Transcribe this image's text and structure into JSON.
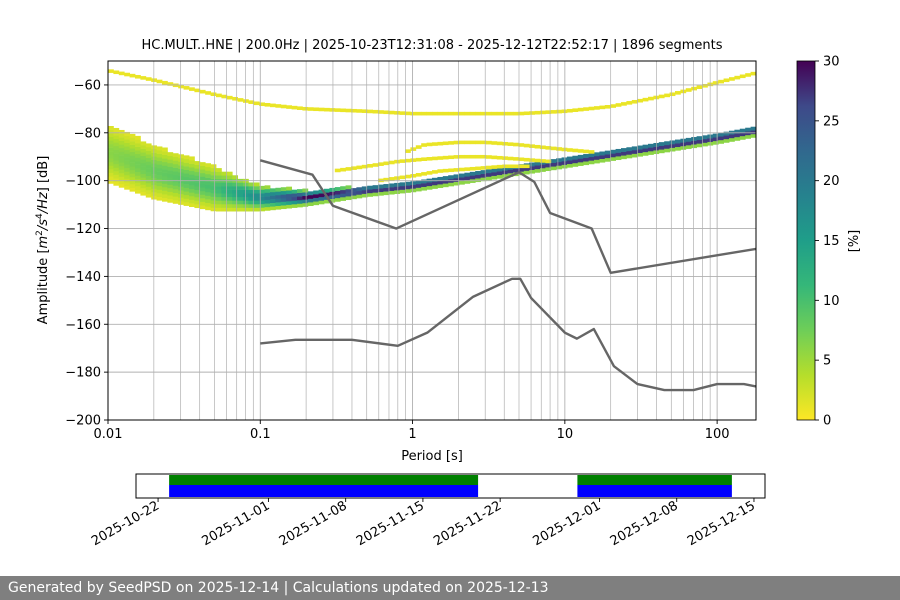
{
  "title": "HC.MULT..HNE | 200.0Hz | 2025-10-23T12:31:08 - 2025-12-12T22:52:17 | 1896 segments",
  "footer": "Generated by SeedPSD on 2025-12-14 | Calculations updated on 2025-12-13",
  "chart_data": [
    {
      "type": "heatmap",
      "title": "HC.MULT..HNE | 200.0Hz | 2025-10-23T12:31:08 - 2025-12-12T22:52:17 | 1896 segments",
      "xlabel": "Period [s]",
      "ylabel": "Amplitude [m²/s⁴/Hz] [dB]",
      "x_scale": "log",
      "xlim": [
        0.01,
        180
      ],
      "ylim": [
        -200,
        -50
      ],
      "x_ticks": [
        "0.01",
        "0.1",
        "1",
        "10",
        "100"
      ],
      "y_ticks": [
        "−60",
        "−80",
        "−100",
        "−120",
        "−140",
        "−160",
        "−180",
        "−200"
      ],
      "grid": true,
      "colorbar": {
        "label": "[%]",
        "min": 0,
        "max": 30,
        "ticks": [
          "0",
          "5",
          "10",
          "15",
          "20",
          "25",
          "30"
        ],
        "colormap": "viridis_r"
      },
      "density_bands": [
        {
          "name": "main-psd-band",
          "x": [
            0.01,
            0.02,
            0.05,
            0.1,
            0.2,
            0.5,
            1,
            2,
            5,
            10,
            20,
            50,
            100,
            180
          ],
          "y": [
            -88,
            -96,
            -103,
            -107,
            -107,
            -104,
            -102,
            -99,
            -95,
            -92,
            -89,
            -85,
            -82,
            -79
          ],
          "spread_db": [
            12,
            11,
            9,
            5,
            3,
            2,
            2,
            2,
            2,
            2,
            2,
            2,
            2,
            2
          ],
          "peak_percent": [
            6,
            8,
            10,
            18,
            30,
            30,
            30,
            30,
            30,
            30,
            30,
            30,
            30,
            30
          ]
        }
      ],
      "faint_traces": [
        {
          "x": [
            0.01,
            0.02,
            0.05,
            0.1,
            0.2,
            0.5,
            1,
            2,
            5,
            10,
            20,
            50,
            100,
            180
          ],
          "y": [
            -54,
            -58,
            -64,
            -68,
            -70,
            -71,
            -72,
            -72,
            -72,
            -71,
            -69,
            -64,
            -59,
            -55
          ],
          "percent": 1
        },
        {
          "x": [
            0.9,
            1.2,
            2,
            3,
            5,
            7,
            10,
            15
          ],
          "y": [
            -88,
            -85,
            -84,
            -84,
            -85,
            -86,
            -87,
            -88
          ],
          "percent": 1
        },
        {
          "x": [
            0.3,
            0.5,
            0.8,
            1.2,
            2,
            3,
            5,
            8
          ],
          "y": [
            -96,
            -94,
            -92,
            -91,
            -90,
            -90,
            -91,
            -92
          ],
          "percent": 1
        },
        {
          "x": [
            0.6,
            1,
            1.5,
            2.5,
            4,
            6
          ],
          "y": [
            -100,
            -98,
            -96,
            -95,
            -94,
            -94
          ],
          "percent": 1
        }
      ],
      "series": [
        {
          "name": "",
          "x": [
            0.1,
            0.22,
            0.3,
            0.78,
            5,
            6.3,
            8,
            15,
            20,
            180
          ],
          "y": [
            -91.5,
            -97.5,
            -110.5,
            -120,
            -96.5,
            -100.5,
            -113.5,
            -120,
            -138.5,
            -128.5
          ]
        },
        {
          "name": "",
          "x": [
            0.1,
            0.17,
            0.4,
            0.8,
            1.25,
            2.5,
            4.5,
            5.1,
            6,
            10,
            12,
            15.5,
            21,
            30,
            45,
            70,
            100,
            150,
            180
          ],
          "y": [
            -168,
            -166.5,
            -166.5,
            -169,
            -163.5,
            -148.5,
            -141,
            -141,
            -149,
            -163.5,
            -166,
            -162,
            -177.5,
            -185,
            -187.5,
            -187.5,
            -185,
            -185,
            -186
          ]
        }
      ]
    },
    {
      "type": "timeline",
      "x_ticks": [
        "2025-10-22",
        "2025-11-01",
        "2025-11-08",
        "2025-11-15",
        "2025-11-22",
        "2025-12-01",
        "2025-12-08",
        "2025-12-15"
      ],
      "xlim": [
        "2025-10-20",
        "2025-12-16"
      ],
      "available_spans": [
        {
          "start": "2025-10-23",
          "end": "2025-11-20"
        },
        {
          "start": "2025-11-29",
          "end": "2025-12-13"
        }
      ],
      "processed_spans": [
        {
          "start": "2025-10-23",
          "end": "2025-11-20"
        },
        {
          "start": "2025-11-29",
          "end": "2025-12-13"
        }
      ],
      "colors": {
        "available": "#008000",
        "processed": "#0000ff"
      }
    }
  ]
}
